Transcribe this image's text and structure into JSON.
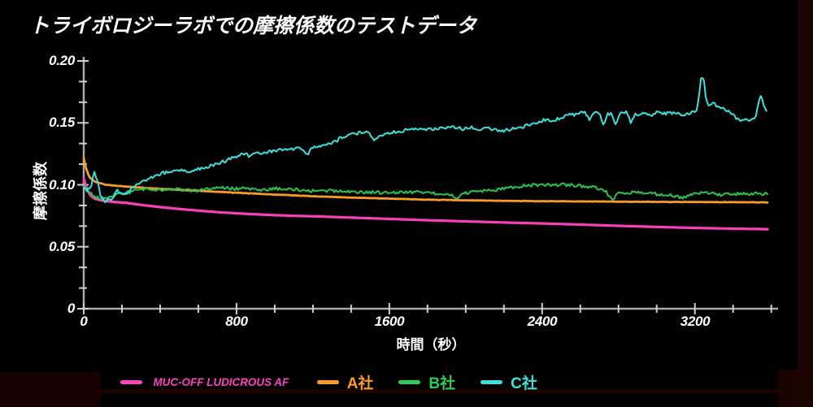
{
  "title": "トライボロジーラボでの摩擦係数のテストデータ",
  "colors": {
    "background": "#000000",
    "axis": "#a9a9a9",
    "ticks": "#cfcfcf",
    "tick_labels": "#ffffff",
    "title_text": "#ffffff",
    "edge_artifact_right": "#1c0402",
    "edge_artifact_corner": "#1a0301",
    "edge_artifact_left": "#170200",
    "edge_artifact_line": "#1d0300"
  },
  "chart_data": {
    "type": "line",
    "title": "トライボロジーラボでの摩擦係数のテストデータ",
    "xlabel": "時間（秒）",
    "ylabel": "摩擦係数",
    "xlim": [
      0,
      3580
    ],
    "ylim": [
      0,
      0.2
    ],
    "grid": false,
    "legend_position": "bottom",
    "x_ticks": {
      "values": [
        0,
        800,
        1600,
        2400,
        3200
      ],
      "labels": [
        "0",
        "800",
        "1600",
        "2400",
        "3200"
      ],
      "minor_divisions": 4
    },
    "y_ticks": {
      "values": [
        0,
        0.05,
        0.1,
        0.15,
        0.2
      ],
      "labels": [
        "0",
        "0.05",
        "0.10",
        "0.15",
        "0.20"
      ],
      "minor_divisions": 3
    },
    "series": [
      {
        "name": "MUC-OFF LUDICROUS AF",
        "color": "#f840b8",
        "width": 3.2,
        "noise": 0,
        "points": [
          [
            0,
            0.105
          ],
          [
            15,
            0.097
          ],
          [
            35,
            0.0915
          ],
          [
            60,
            0.0885
          ],
          [
            100,
            0.0872
          ],
          [
            150,
            0.0863
          ],
          [
            220,
            0.0855
          ],
          [
            300,
            0.0838
          ],
          [
            400,
            0.082
          ],
          [
            500,
            0.0805
          ],
          [
            600,
            0.0792
          ],
          [
            710,
            0.0778
          ],
          [
            800,
            0.077
          ],
          [
            900,
            0.0762
          ],
          [
            1000,
            0.0755
          ],
          [
            1100,
            0.075
          ],
          [
            1220,
            0.0745
          ],
          [
            1350,
            0.0738
          ],
          [
            1500,
            0.073
          ],
          [
            1650,
            0.0722
          ],
          [
            1800,
            0.0714
          ],
          [
            2000,
            0.0705
          ],
          [
            2200,
            0.0696
          ],
          [
            2400,
            0.0688
          ],
          [
            2600,
            0.0679
          ],
          [
            2800,
            0.0669
          ],
          [
            3000,
            0.066
          ],
          [
            3200,
            0.0652
          ],
          [
            3400,
            0.0646
          ],
          [
            3580,
            0.0642
          ]
        ]
      },
      {
        "name": "A社",
        "color": "#f89b28",
        "width": 2.8,
        "noise": 0.00015,
        "points": [
          [
            0,
            0.1215
          ],
          [
            12,
            0.113
          ],
          [
            30,
            0.1062
          ],
          [
            60,
            0.1022
          ],
          [
            120,
            0.1
          ],
          [
            250,
            0.0982
          ],
          [
            400,
            0.0968
          ],
          [
            600,
            0.0952
          ],
          [
            800,
            0.0936
          ],
          [
            1000,
            0.0921
          ],
          [
            1200,
            0.0908
          ],
          [
            1400,
            0.0897
          ],
          [
            1600,
            0.0888
          ],
          [
            1800,
            0.088
          ],
          [
            2000,
            0.0875
          ],
          [
            2200,
            0.0871
          ],
          [
            2400,
            0.0868
          ],
          [
            2600,
            0.0866
          ],
          [
            2800,
            0.0864
          ],
          [
            3000,
            0.0862
          ],
          [
            3200,
            0.0861
          ],
          [
            3400,
            0.086
          ],
          [
            3580,
            0.0858
          ]
        ]
      },
      {
        "name": "B社",
        "color": "#2bc452",
        "width": 2,
        "noise": 0.0013,
        "points": [
          [
            0,
            0.0995
          ],
          [
            20,
            0.096
          ],
          [
            40,
            0.0925
          ],
          [
            60,
            0.0905
          ],
          [
            90,
            0.0885
          ],
          [
            120,
            0.0895
          ],
          [
            150,
            0.0915
          ],
          [
            180,
            0.0925
          ],
          [
            220,
            0.0935
          ],
          [
            260,
            0.0948
          ],
          [
            300,
            0.096
          ],
          [
            340,
            0.0968
          ],
          [
            390,
            0.0962
          ],
          [
            440,
            0.0958
          ],
          [
            490,
            0.0962
          ],
          [
            540,
            0.0958
          ],
          [
            590,
            0.0952
          ],
          [
            640,
            0.096
          ],
          [
            690,
            0.0972
          ],
          [
            740,
            0.0975
          ],
          [
            790,
            0.0968
          ],
          [
            840,
            0.0972
          ],
          [
            890,
            0.0962
          ],
          [
            940,
            0.0955
          ],
          [
            990,
            0.0968
          ],
          [
            1040,
            0.0972
          ],
          [
            1090,
            0.0965
          ],
          [
            1140,
            0.0958
          ],
          [
            1190,
            0.095
          ],
          [
            1240,
            0.0958
          ],
          [
            1290,
            0.0952
          ],
          [
            1340,
            0.095
          ],
          [
            1400,
            0.0945
          ],
          [
            1460,
            0.094
          ],
          [
            1520,
            0.094
          ],
          [
            1580,
            0.0935
          ],
          [
            1640,
            0.0938
          ],
          [
            1700,
            0.094
          ],
          [
            1760,
            0.0938
          ],
          [
            1820,
            0.0932
          ],
          [
            1880,
            0.0928
          ],
          [
            1925,
            0.092
          ],
          [
            1950,
            0.0872
          ],
          [
            1975,
            0.093
          ],
          [
            2030,
            0.094
          ],
          [
            2090,
            0.095
          ],
          [
            2150,
            0.096
          ],
          [
            2210,
            0.0972
          ],
          [
            2270,
            0.0985
          ],
          [
            2330,
            0.0995
          ],
          [
            2390,
            0.1
          ],
          [
            2450,
            0.1002
          ],
          [
            2510,
            0.1
          ],
          [
            2570,
            0.0995
          ],
          [
            2630,
            0.0988
          ],
          [
            2690,
            0.0975
          ],
          [
            2730,
            0.0955
          ],
          [
            2770,
            0.0868
          ],
          [
            2800,
            0.0938
          ],
          [
            2850,
            0.094
          ],
          [
            2900,
            0.0935
          ],
          [
            2950,
            0.093
          ],
          [
            3000,
            0.0925
          ],
          [
            3050,
            0.0918
          ],
          [
            3100,
            0.091
          ],
          [
            3140,
            0.0893
          ],
          [
            3175,
            0.0925
          ],
          [
            3215,
            0.0938
          ],
          [
            3255,
            0.0932
          ],
          [
            3295,
            0.093
          ],
          [
            3335,
            0.0918
          ],
          [
            3375,
            0.093
          ],
          [
            3415,
            0.0925
          ],
          [
            3455,
            0.093
          ],
          [
            3495,
            0.0928
          ],
          [
            3540,
            0.093
          ],
          [
            3580,
            0.0922
          ]
        ]
      },
      {
        "name": "C社",
        "color": "#3ce1dc",
        "width": 2,
        "noise": 0.0013,
        "points": [
          [
            0,
            0.0975
          ],
          [
            20,
            0.0955
          ],
          [
            40,
            0.099
          ],
          [
            55,
            0.112
          ],
          [
            70,
            0.103
          ],
          [
            90,
            0.0905
          ],
          [
            110,
            0.0862
          ],
          [
            130,
            0.0895
          ],
          [
            150,
            0.0878
          ],
          [
            175,
            0.096
          ],
          [
            200,
            0.092
          ],
          [
            230,
            0.094
          ],
          [
            260,
            0.0985
          ],
          [
            300,
            0.102
          ],
          [
            350,
            0.106
          ],
          [
            400,
            0.109
          ],
          [
            450,
            0.1105
          ],
          [
            500,
            0.1115
          ],
          [
            545,
            0.1108
          ],
          [
            600,
            0.1125
          ],
          [
            650,
            0.1145
          ],
          [
            700,
            0.117
          ],
          [
            750,
            0.12
          ],
          [
            800,
            0.123
          ],
          [
            840,
            0.1252
          ],
          [
            870,
            0.1228
          ],
          [
            905,
            0.1252
          ],
          [
            940,
            0.1262
          ],
          [
            980,
            0.1272
          ],
          [
            1020,
            0.1282
          ],
          [
            1060,
            0.1283
          ],
          [
            1100,
            0.1292
          ],
          [
            1140,
            0.13
          ],
          [
            1168,
            0.1243
          ],
          [
            1200,
            0.1298
          ],
          [
            1240,
            0.1312
          ],
          [
            1280,
            0.133
          ],
          [
            1320,
            0.1352
          ],
          [
            1355,
            0.1388
          ],
          [
            1390,
            0.1405
          ],
          [
            1425,
            0.1415
          ],
          [
            1460,
            0.142
          ],
          [
            1495,
            0.1422
          ],
          [
            1520,
            0.1358
          ],
          [
            1545,
            0.1382
          ],
          [
            1575,
            0.14
          ],
          [
            1610,
            0.1422
          ],
          [
            1650,
            0.1432
          ],
          [
            1700,
            0.1442
          ],
          [
            1750,
            0.1448
          ],
          [
            1800,
            0.1445
          ],
          [
            1850,
            0.1455
          ],
          [
            1900,
            0.1458
          ],
          [
            1950,
            0.1462
          ],
          [
            1990,
            0.1448
          ],
          [
            2030,
            0.1468
          ],
          [
            2070,
            0.1438
          ],
          [
            2110,
            0.1458
          ],
          [
            2150,
            0.1448
          ],
          [
            2195,
            0.1428
          ],
          [
            2230,
            0.1448
          ],
          [
            2265,
            0.1462
          ],
          [
            2300,
            0.1468
          ],
          [
            2340,
            0.1488
          ],
          [
            2380,
            0.1508
          ],
          [
            2420,
            0.1528
          ],
          [
            2460,
            0.1518
          ],
          [
            2500,
            0.1542
          ],
          [
            2540,
            0.1568
          ],
          [
            2580,
            0.1562
          ],
          [
            2620,
            0.1588
          ],
          [
            2648,
            0.1528
          ],
          [
            2672,
            0.1578
          ],
          [
            2700,
            0.1582
          ],
          [
            2722,
            0.1468
          ],
          [
            2745,
            0.1572
          ],
          [
            2765,
            0.1578
          ],
          [
            2785,
            0.1482
          ],
          [
            2805,
            0.1568
          ],
          [
            2825,
            0.1582
          ],
          [
            2845,
            0.1588
          ],
          [
            2865,
            0.1502
          ],
          [
            2885,
            0.1572
          ],
          [
            2915,
            0.1568
          ],
          [
            2945,
            0.1578
          ],
          [
            2975,
            0.1562
          ],
          [
            3005,
            0.1588
          ],
          [
            3035,
            0.1572
          ],
          [
            3065,
            0.1582
          ],
          [
            3095,
            0.1578
          ],
          [
            3125,
            0.1568
          ],
          [
            3155,
            0.1572
          ],
          [
            3185,
            0.1588
          ],
          [
            3212,
            0.1602
          ],
          [
            3235,
            0.1882
          ],
          [
            3247,
            0.1842
          ],
          [
            3260,
            0.1662
          ],
          [
            3280,
            0.1632
          ],
          [
            3300,
            0.1658
          ],
          [
            3320,
            0.1622
          ],
          [
            3340,
            0.1632
          ],
          [
            3360,
            0.1602
          ],
          [
            3380,
            0.1588
          ],
          [
            3400,
            0.1562
          ],
          [
            3420,
            0.1528
          ],
          [
            3440,
            0.1518
          ],
          [
            3460,
            0.1532
          ],
          [
            3480,
            0.1508
          ],
          [
            3500,
            0.1528
          ],
          [
            3520,
            0.1562
          ],
          [
            3535,
            0.1662
          ],
          [
            3545,
            0.1732
          ],
          [
            3558,
            0.1652
          ],
          [
            3575,
            0.1592
          ]
        ]
      }
    ]
  },
  "legend": {
    "items": [
      {
        "label": "MUC-OFF LUDICROUS AF",
        "color": "#fb43bd"
      },
      {
        "label": "A社",
        "color": "#ff9c20"
      },
      {
        "label": "B社",
        "color": "#2ecb57"
      },
      {
        "label": "C社",
        "color": "#3ce1dc"
      }
    ]
  }
}
